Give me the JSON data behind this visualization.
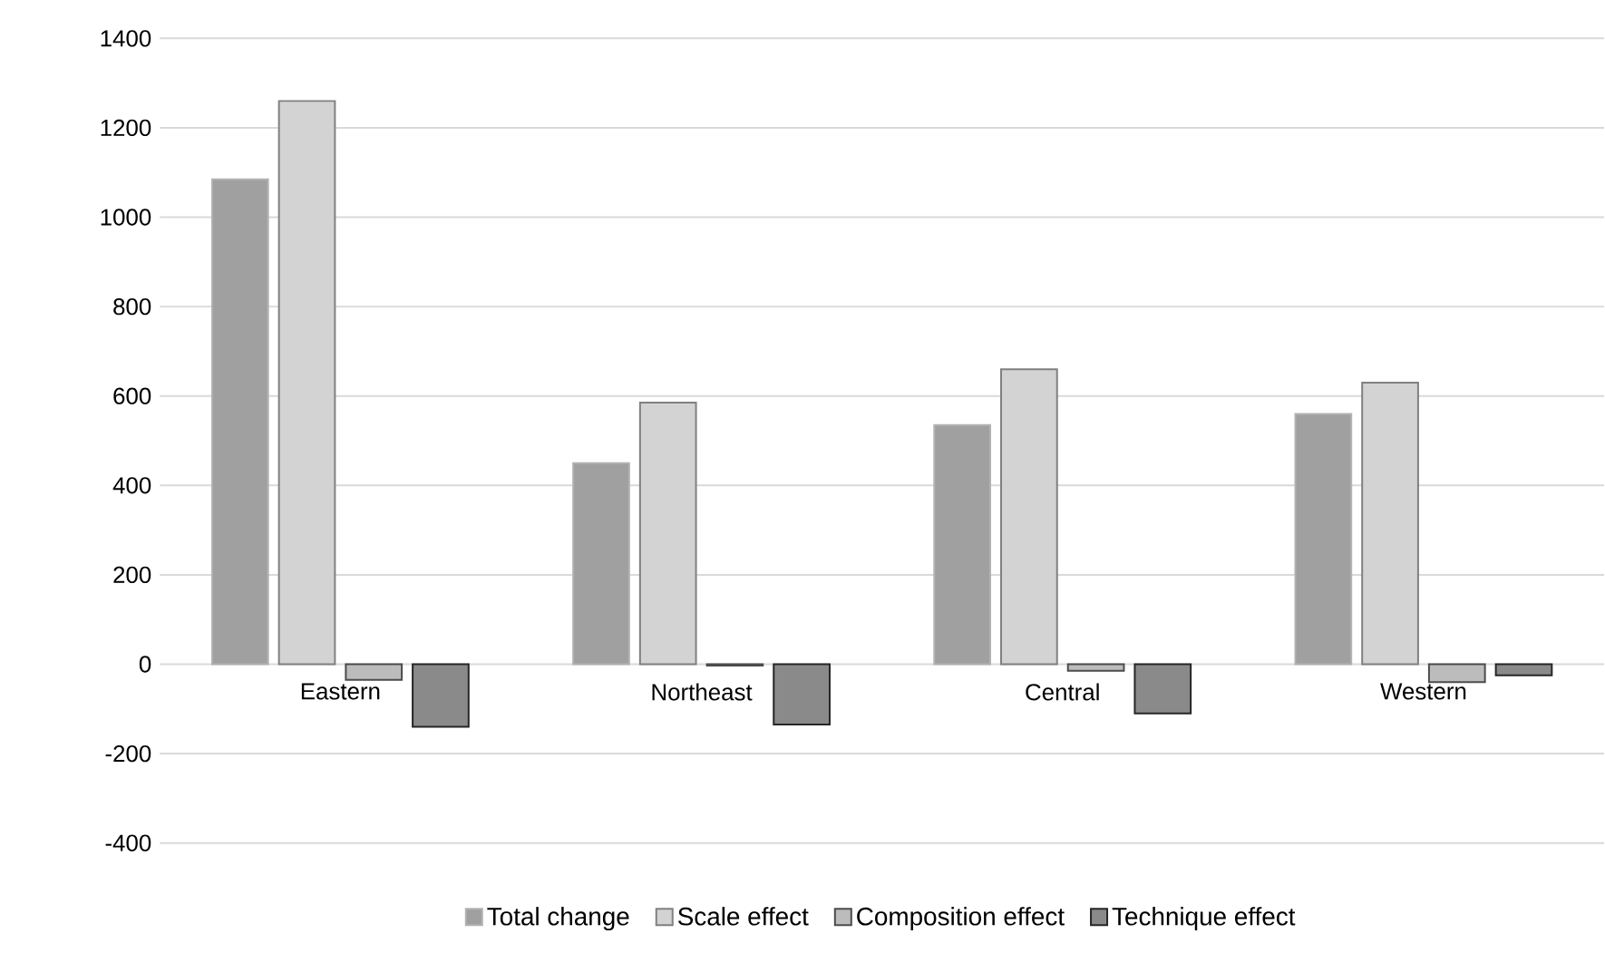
{
  "chart_data": {
    "type": "bar",
    "categories": [
      "Eastern",
      "Northeast",
      "Central",
      "Western"
    ],
    "series": [
      {
        "name": "Total change",
        "color": "#a0a0a0",
        "values": [
          1085,
          450,
          535,
          560
        ]
      },
      {
        "name": "Scale effect",
        "color": "#d3d3d3",
        "values": [
          1260,
          585,
          660,
          630
        ]
      },
      {
        "name": "Composition effect",
        "color": "#bcbcbc",
        "values": [
          -35,
          -3,
          -15,
          -40
        ]
      },
      {
        "name": "Technique effect",
        "color": "#8a8a8a",
        "values": [
          -140,
          -135,
          -110,
          -25
        ]
      }
    ],
    "ylim": [
      -400,
      1400
    ],
    "yticks": [
      -400,
      -200,
      0,
      200,
      400,
      600,
      800,
      1000,
      1200,
      1400
    ],
    "grid": "y",
    "legend": "bottom"
  }
}
